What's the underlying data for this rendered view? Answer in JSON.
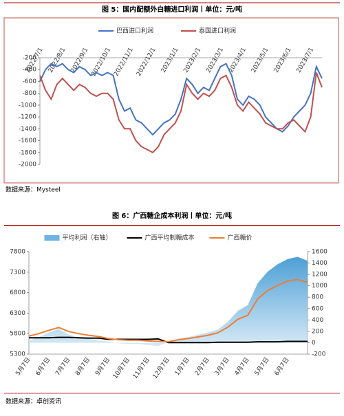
{
  "chart_data": [
    {
      "type": "line",
      "title": "图 5：国内配额外白糖进口利润丨单位：元/吨",
      "source": "数据来源：Mysteel",
      "categories": [
        "2022/7/1",
        null,
        null,
        null,
        "2022/8/1",
        null,
        null,
        null,
        "2022/9/1",
        null,
        null,
        null,
        "2022/10/1",
        null,
        null,
        null,
        "2022/11/1",
        null,
        null,
        null,
        "2022/12/1",
        null,
        null,
        null,
        "2023/1/1",
        null,
        null,
        null,
        "2023/2/1",
        null,
        null,
        null,
        "2023/3/1",
        null,
        null,
        null,
        "2023/4/1",
        null,
        null,
        null,
        "2023/5/1",
        null,
        null,
        null,
        "2023/6/1",
        null,
        null,
        null,
        "2023/7/1",
        null,
        null
      ],
      "ylim": [
        -2000,
        -200
      ],
      "yticks": [
        -200,
        -400,
        -600,
        -800,
        -1000,
        -1200,
        -1400,
        -1600,
        -1800,
        -2000
      ],
      "series": [
        {
          "name": "巴西进口利润",
          "color": "#4472c4",
          "values": [
            -600,
            -400,
            -300,
            -350,
            -300,
            -400,
            -450,
            -350,
            -400,
            -500,
            -450,
            -500,
            -450,
            -500,
            -900,
            -1100,
            -1050,
            -1250,
            -1300,
            -1400,
            -1500,
            -1400,
            -1300,
            -1250,
            -1150,
            -900,
            -550,
            -650,
            -800,
            -700,
            -750,
            -550,
            -350,
            -300,
            -500,
            -900,
            -1000,
            -850,
            -900,
            -1000,
            -1200,
            -1300,
            -1400,
            -1450,
            -1350,
            -1200,
            -1100,
            -1000,
            -800,
            -350,
            -550
          ]
        },
        {
          "name": "泰国进口利润",
          "color": "#c0504d",
          "values": [
            -500,
            -750,
            -900,
            -650,
            -550,
            -650,
            -750,
            -650,
            -700,
            -800,
            -850,
            -800,
            -800,
            -900,
            -1250,
            -1400,
            -1400,
            -1600,
            -1700,
            -1750,
            -1800,
            -1700,
            -1500,
            -1400,
            -1300,
            -1100,
            -650,
            -800,
            -900,
            -800,
            -850,
            -750,
            -550,
            -500,
            -700,
            -1000,
            -1100,
            -950,
            -1050,
            -1150,
            -1300,
            -1350,
            -1400,
            -1400,
            -1300,
            -1250,
            -1350,
            -1450,
            -1200,
            -450,
            -700
          ]
        }
      ]
    },
    {
      "type": "line",
      "title": "图 6：广西糖企成本利润丨单位：元/吨",
      "source": "数据来源：卓创资讯",
      "categories": [
        "5月7日",
        null,
        "6月7日",
        null,
        "7月7日",
        null,
        "8月7日",
        null,
        "9月7日",
        null,
        "10月7日",
        null,
        "11月7日",
        null,
        "12月7日",
        null,
        "1月7日",
        null,
        "2月7日",
        null,
        "3月7日",
        null,
        "4月7日",
        null,
        "5月7日",
        null,
        "6月7日",
        null,
        null
      ],
      "ylim": [
        5300,
        7800
      ],
      "yticks": [
        5300,
        5800,
        6300,
        6800,
        7300,
        7800
      ],
      "y2lim": [
        -200,
        1600
      ],
      "y2ticks": [
        -200,
        0,
        200,
        400,
        600,
        800,
        1000,
        1200,
        1400,
        1600
      ],
      "series": [
        {
          "name": "平均利润（右轴）",
          "type": "area",
          "axis": "y2",
          "color": "#6fb3e0",
          "values": [
            40,
            100,
            180,
            240,
            140,
            100,
            70,
            40,
            20,
            -10,
            -20,
            -20,
            -40,
            -60,
            20,
            70,
            100,
            140,
            180,
            230,
            370,
            560,
            660,
            1050,
            1250,
            1380,
            1470,
            1510,
            1440
          ]
        },
        {
          "name": "广西平均制糖成本",
          "color": "#000000",
          "values": [
            5700,
            5700,
            5700,
            5710,
            5710,
            5700,
            5690,
            5690,
            5660,
            5660,
            5660,
            5660,
            5660,
            5670,
            5580,
            5580,
            5580,
            5580,
            5580,
            5590,
            5590,
            5590,
            5590,
            5600,
            5600,
            5600,
            5610,
            5610,
            5610
          ]
        },
        {
          "name": "广西糖价",
          "color": "#ed7d31",
          "values": [
            5740,
            5800,
            5880,
            5950,
            5850,
            5800,
            5760,
            5730,
            5680,
            5650,
            5640,
            5640,
            5620,
            5610,
            5600,
            5650,
            5680,
            5720,
            5760,
            5820,
            5960,
            6150,
            6250,
            6650,
            6850,
            6980,
            7080,
            7120,
            7050
          ]
        }
      ]
    }
  ]
}
